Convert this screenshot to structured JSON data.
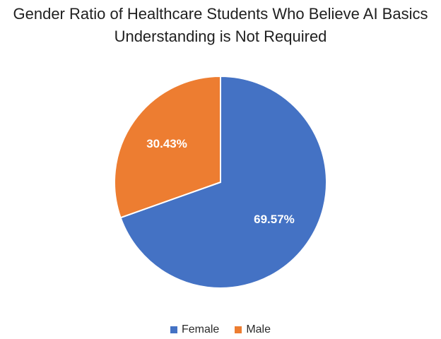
{
  "chart_data": {
    "type": "pie",
    "title_lines": [
      "Gender Ratio of Healthcare Students Who Believe AI Basics",
      "Understanding is Not Required"
    ],
    "slices": [
      {
        "name": "Female",
        "value": 69.57,
        "label": "69.57%",
        "color": "#4472C4"
      },
      {
        "name": "Male",
        "value": 30.43,
        "label": "30.43%",
        "color": "#ED7D31"
      }
    ],
    "legend_position": "bottom"
  }
}
